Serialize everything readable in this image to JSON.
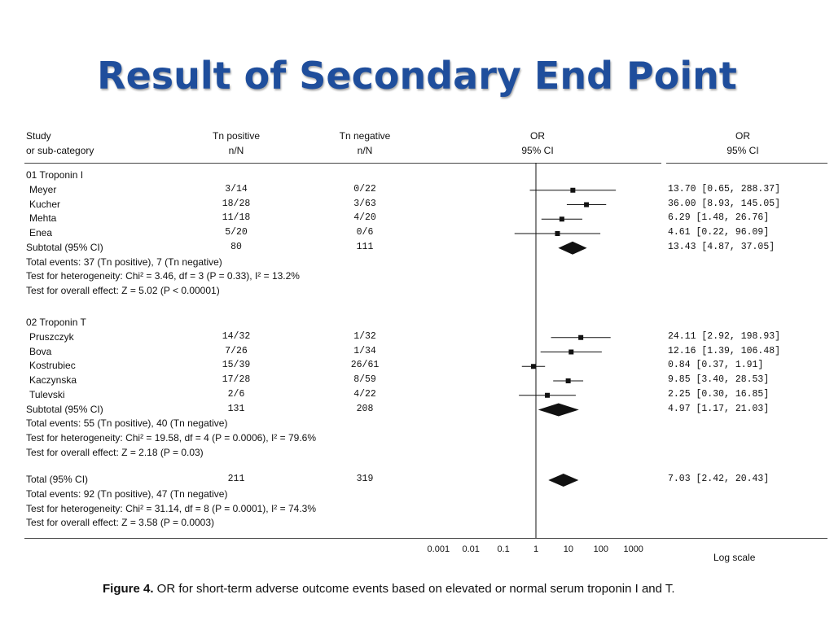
{
  "slide": {
    "title": "Result of Secondary End Point"
  },
  "header": {
    "study_line1": "Study",
    "study_line2": "or sub-category",
    "pos_line1": "Tn positive",
    "pos_line2": "n/N",
    "neg_line1": "Tn negative",
    "neg_line2": "n/N",
    "or_line1": "OR",
    "or_line2": "95% CI",
    "orv_line1": "OR",
    "orv_line2": "95% CI"
  },
  "groups": [
    {
      "name": "01 Troponin I",
      "studies": [
        {
          "name": "Meyer",
          "pos": "3/14",
          "neg": "0/22",
          "or": 13.7,
          "lo": 0.65,
          "hi": 288.37,
          "ci_text": "13.70 [0.65, 288.37]"
        },
        {
          "name": "Kucher",
          "pos": "18/28",
          "neg": "3/63",
          "or": 36.0,
          "lo": 8.93,
          "hi": 145.05,
          "ci_text": "36.00 [8.93, 145.05]"
        },
        {
          "name": "Mehta",
          "pos": "11/18",
          "neg": "4/20",
          "or": 6.29,
          "lo": 1.48,
          "hi": 26.76,
          "ci_text": "6.29 [1.48, 26.76]"
        },
        {
          "name": "Enea",
          "pos": "5/20",
          "neg": "0/6",
          "or": 4.61,
          "lo": 0.22,
          "hi": 96.09,
          "ci_text": "4.61 [0.22, 96.09]"
        }
      ],
      "subtotal": {
        "label": "Subtotal (95% CI)",
        "pos": "80",
        "neg": "111",
        "or": 13.43,
        "lo": 4.87,
        "hi": 37.05,
        "ci_text": "13.43 [4.87, 37.05]"
      },
      "notes": [
        "Total events: 37 (Tn positive), 7 (Tn negative)",
        "Test for heterogeneity: Chi² = 3.46, df = 3 (P = 0.33), I² = 13.2%",
        "Test for overall effect: Z = 5.02 (P < 0.00001)"
      ]
    },
    {
      "name": "02 Troponin T",
      "studies": [
        {
          "name": "Pruszczyk",
          "pos": "14/32",
          "neg": "1/32",
          "or": 24.11,
          "lo": 2.92,
          "hi": 198.93,
          "ci_text": "24.11 [2.92, 198.93]"
        },
        {
          "name": "Bova",
          "pos": "7/26",
          "neg": "1/34",
          "or": 12.16,
          "lo": 1.39,
          "hi": 106.48,
          "ci_text": "12.16 [1.39, 106.48]"
        },
        {
          "name": "Kostrubiec",
          "pos": "15/39",
          "neg": "26/61",
          "or": 0.84,
          "lo": 0.37,
          "hi": 1.91,
          "ci_text": "0.84 [0.37, 1.91]"
        },
        {
          "name": "Kaczynska",
          "pos": "17/28",
          "neg": "8/59",
          "or": 9.85,
          "lo": 3.4,
          "hi": 28.53,
          "ci_text": "9.85 [3.40, 28.53]"
        },
        {
          "name": "Tulevski",
          "pos": "2/6",
          "neg": "4/22",
          "or": 2.25,
          "lo": 0.3,
          "hi": 16.85,
          "ci_text": "2.25 [0.30, 16.85]"
        }
      ],
      "subtotal": {
        "label": "Subtotal (95% CI)",
        "pos": "131",
        "neg": "208",
        "or": 4.97,
        "lo": 1.17,
        "hi": 21.03,
        "ci_text": "4.97 [1.17, 21.03]"
      },
      "notes": [
        "Total events: 55 (Tn positive), 40 (Tn negative)",
        "Test for heterogeneity: Chi² = 19.58, df = 4 (P = 0.0006), I² = 79.6%",
        "Test for overall effect: Z = 2.18 (P = 0.03)"
      ]
    }
  ],
  "total": {
    "label": "Total (95% CI)",
    "pos": "211",
    "neg": "319",
    "or": 7.03,
    "lo": 2.42,
    "hi": 20.43,
    "ci_text": "7.03 [2.42, 20.43]",
    "notes": [
      "Total events: 92 (Tn positive), 47 (Tn negative)",
      "Test for heterogeneity: Chi² = 31.14, df = 8 (P = 0.0001), I² = 74.3%",
      "Test for overall effect: Z = 3.58 (P = 0.0003)"
    ]
  },
  "chart_data": {
    "type": "forest",
    "x_scale": "log",
    "x_ticks": [
      {
        "value": 0.001,
        "label": "0.001"
      },
      {
        "value": 0.01,
        "label": "0.01"
      },
      {
        "value": 0.1,
        "label": "0.1"
      },
      {
        "value": 1,
        "label": "1"
      },
      {
        "value": 10,
        "label": "10"
      },
      {
        "value": 100,
        "label": "100"
      },
      {
        "value": 1000,
        "label": "1000"
      }
    ],
    "xlabel": "Log scale",
    "reference_line": 1
  },
  "caption": {
    "bold": "Figure 4.",
    "text": " OR for short-term adverse outcome events based on elevated or normal serum troponin I and T."
  },
  "colors": {
    "title": "#1f4e9c",
    "marks": "#111111"
  }
}
